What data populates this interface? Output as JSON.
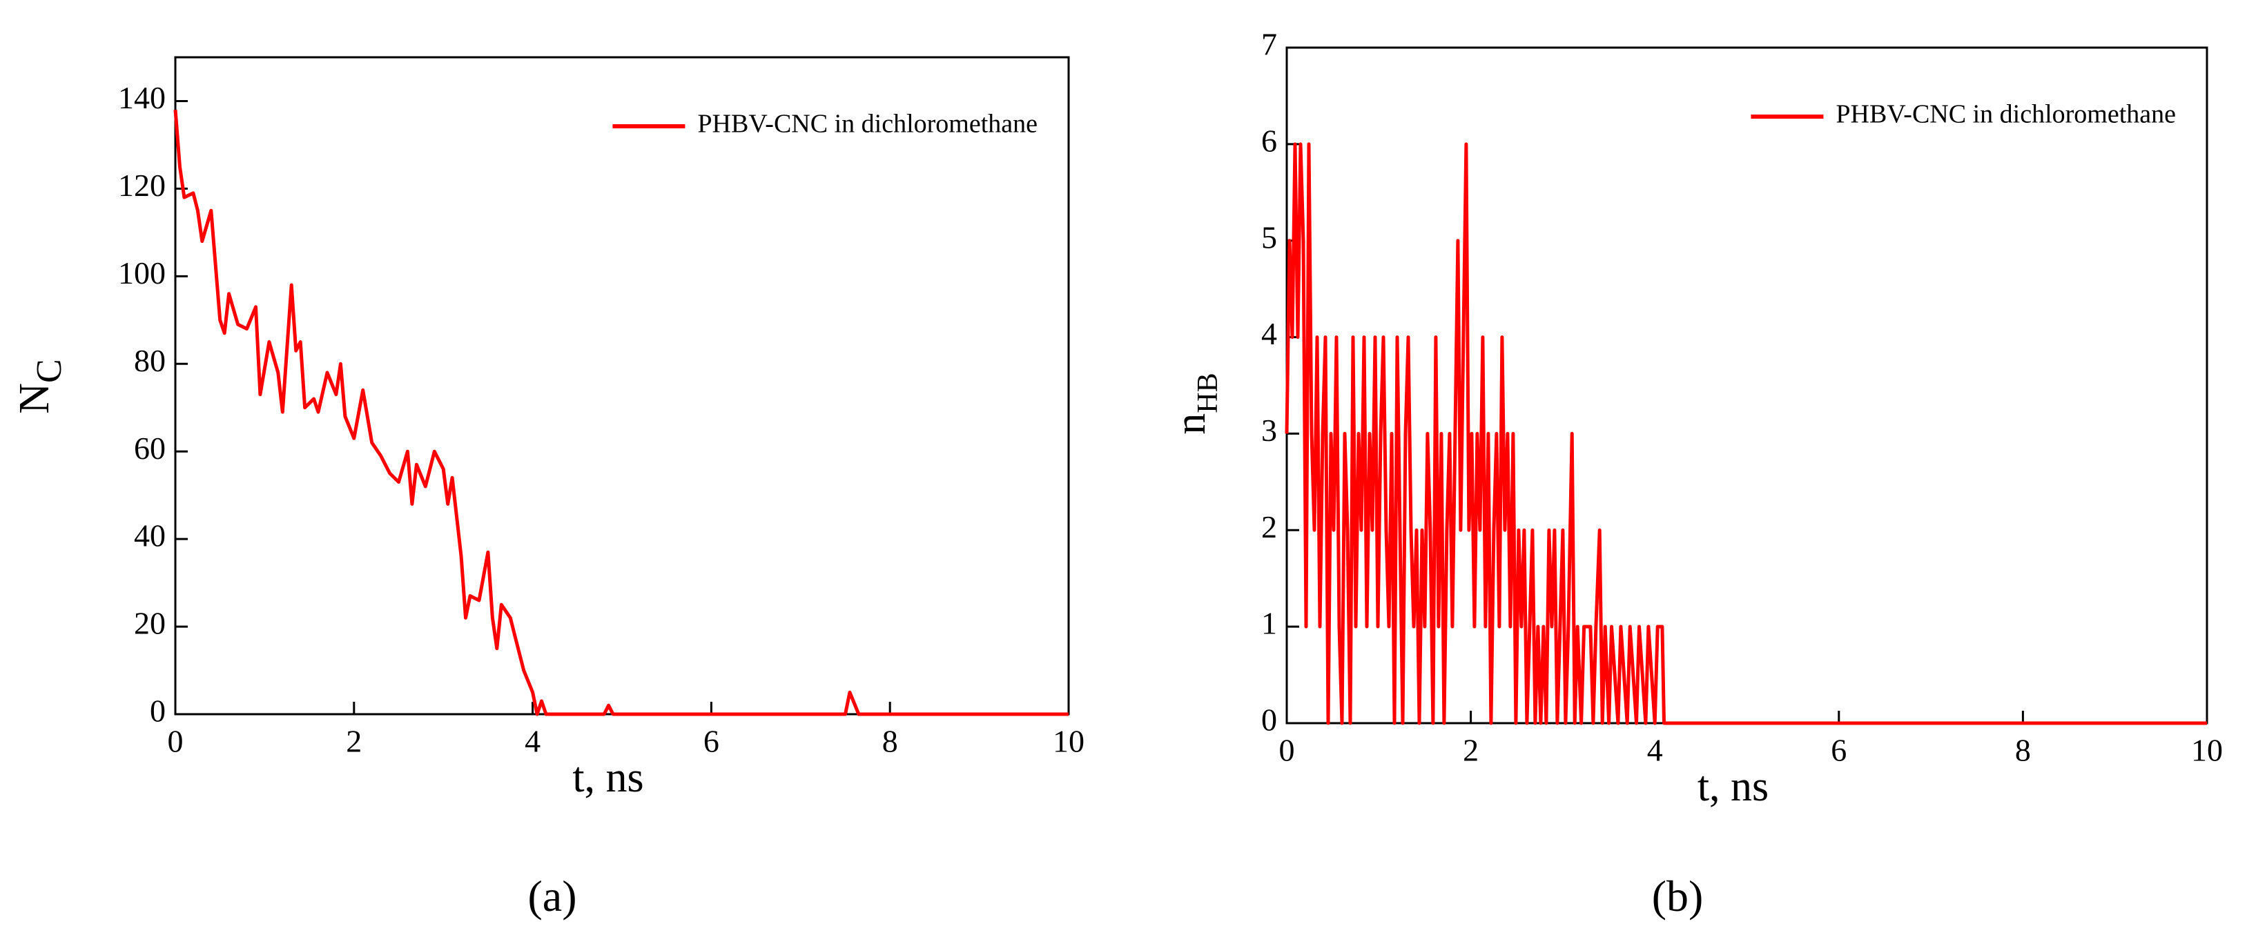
{
  "chart_data": [
    {
      "type": "line",
      "ylabel": "N",
      "ylabel_subscript": "C",
      "xlabel": "t, ns",
      "caption": "(a)",
      "xlim": [
        0,
        10
      ],
      "xticks": [
        0,
        2,
        4,
        6,
        8,
        10
      ],
      "ylim": [
        0,
        150
      ],
      "yticks": [
        0,
        20,
        40,
        60,
        80,
        100,
        120,
        140
      ],
      "legend": "upper right",
      "series": [
        {
          "name": "PHBV-CNC in dichloromethane",
          "color": "#ff0000",
          "x": [
            0,
            0.05,
            0.1,
            0.2,
            0.25,
            0.3,
            0.4,
            0.5,
            0.55,
            0.6,
            0.7,
            0.8,
            0.9,
            0.95,
            1.05,
            1.15,
            1.2,
            1.3,
            1.35,
            1.4,
            1.45,
            1.55,
            1.6,
            1.7,
            1.8,
            1.85,
            1.9,
            2.0,
            2.1,
            2.2,
            2.3,
            2.4,
            2.5,
            2.6,
            2.65,
            2.7,
            2.8,
            2.9,
            3.0,
            3.05,
            3.1,
            3.2,
            3.25,
            3.3,
            3.4,
            3.5,
            3.55,
            3.6,
            3.65,
            3.75,
            3.8,
            3.9,
            4.0,
            4.05,
            4.1,
            4.15,
            4.8,
            4.85,
            4.9,
            7.5,
            7.55,
            7.65,
            10
          ],
          "values": [
            138,
            125,
            118,
            119,
            115,
            108,
            115,
            90,
            87,
            96,
            89,
            88,
            93,
            73,
            85,
            78,
            69,
            98,
            83,
            85,
            70,
            72,
            69,
            78,
            73,
            80,
            68,
            63,
            74,
            62,
            59,
            55,
            53,
            60,
            48,
            57,
            52,
            60,
            56,
            48,
            54,
            36,
            22,
            27,
            26,
            37,
            22,
            15,
            25,
            22,
            18,
            10,
            5,
            0,
            3,
            0,
            0,
            2,
            0,
            0,
            5,
            0,
            0
          ]
        }
      ]
    },
    {
      "type": "line",
      "ylabel": "n",
      "ylabel_subscript": "HB",
      "xlabel": "t, ns",
      "caption": "(b)",
      "xlim": [
        0,
        10
      ],
      "xticks": [
        0,
        2,
        4,
        6,
        8,
        10
      ],
      "ylim": [
        0,
        7
      ],
      "yticks": [
        0,
        1,
        2,
        3,
        4,
        5,
        6,
        7
      ],
      "legend": "upper right",
      "series": [
        {
          "name": "PHBV-CNC in dichloromethane",
          "color": "#ff0000",
          "x": [
            0,
            0.03,
            0.06,
            0.09,
            0.12,
            0.15,
            0.18,
            0.21,
            0.24,
            0.27,
            0.3,
            0.33,
            0.36,
            0.39,
            0.42,
            0.45,
            0.48,
            0.51,
            0.54,
            0.57,
            0.6,
            0.63,
            0.66,
            0.69,
            0.72,
            0.75,
            0.78,
            0.81,
            0.84,
            0.87,
            0.9,
            0.93,
            0.96,
            0.99,
            1.02,
            1.05,
            1.08,
            1.11,
            1.14,
            1.17,
            1.2,
            1.23,
            1.26,
            1.29,
            1.32,
            1.35,
            1.38,
            1.41,
            1.44,
            1.47,
            1.5,
            1.53,
            1.56,
            1.59,
            1.62,
            1.65,
            1.68,
            1.71,
            1.74,
            1.77,
            1.8,
            1.83,
            1.86,
            1.89,
            1.92,
            1.95,
            1.98,
            2.01,
            2.04,
            2.07,
            2.1,
            2.13,
            2.16,
            2.19,
            2.22,
            2.25,
            2.28,
            2.31,
            2.34,
            2.37,
            2.4,
            2.43,
            2.46,
            2.49,
            2.52,
            2.55,
            2.58,
            2.61,
            2.64,
            2.67,
            2.7,
            2.73,
            2.76,
            2.79,
            2.82,
            2.85,
            2.88,
            2.91,
            2.94,
            2.97,
            3.0,
            3.03,
            3.06,
            3.1,
            3.13,
            3.16,
            3.2,
            3.23,
            3.3,
            3.33,
            3.36,
            3.4,
            3.43,
            3.46,
            3.5,
            3.53,
            3.6,
            3.63,
            3.7,
            3.73,
            3.8,
            3.83,
            3.9,
            3.93,
            4.0,
            4.03,
            4.08,
            4.1,
            10
          ],
          "values": [
            3,
            5,
            4,
            6,
            4,
            6,
            5,
            1,
            6,
            3,
            2,
            4,
            1,
            3,
            4,
            0,
            3,
            2,
            4,
            1,
            0,
            3,
            2,
            0,
            4,
            1,
            3,
            2,
            4,
            1,
            3,
            2,
            4,
            1,
            3,
            4,
            2,
            1,
            3,
            0,
            4,
            2,
            0,
            3,
            4,
            2,
            1,
            2,
            0,
            2,
            1,
            3,
            2,
            0,
            4,
            1,
            3,
            0,
            2,
            3,
            1,
            3,
            5,
            2,
            4,
            6,
            2,
            3,
            1,
            3,
            2,
            4,
            1,
            3,
            0,
            2,
            3,
            1,
            4,
            2,
            3,
            1,
            3,
            0,
            2,
            1,
            2,
            0,
            1,
            2,
            0,
            1,
            0,
            1,
            0,
            2,
            1,
            2,
            0,
            1,
            2,
            0,
            1,
            3,
            0,
            1,
            0,
            1,
            1,
            0,
            1,
            2,
            0,
            1,
            0,
            1,
            0,
            1,
            0,
            1,
            0,
            1,
            0,
            1,
            0,
            1,
            1,
            0,
            0
          ]
        }
      ]
    }
  ]
}
